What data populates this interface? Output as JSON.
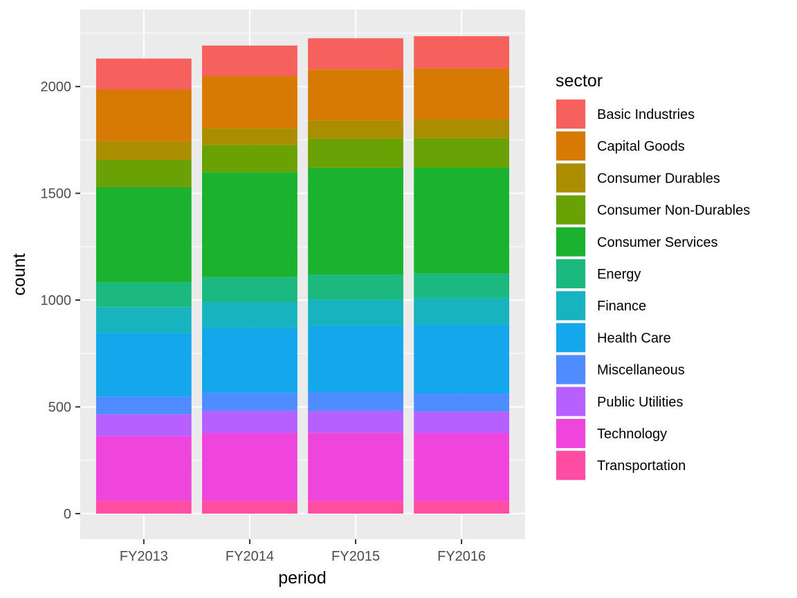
{
  "chart_data": {
    "type": "bar",
    "stacked": true,
    "title": "",
    "xlabel": "period",
    "ylabel": "count",
    "categories": [
      "FY2013",
      "FY2014",
      "FY2015",
      "FY2016"
    ],
    "ylim": [
      -120,
      2360
    ],
    "yticks": [
      0,
      500,
      1000,
      1500,
      2000
    ],
    "ytick_labels": [
      "0",
      "500",
      "1000",
      "1500",
      "2000"
    ],
    "grid": true,
    "legend": {
      "title": "sector",
      "position": "right"
    },
    "series": [
      {
        "name": "Transportation",
        "color": "#FF4DA3",
        "values": [
          60,
          60,
          60,
          60
        ]
      },
      {
        "name": "Technology",
        "color": "#F045DC",
        "values": [
          302,
          317,
          318,
          317
        ]
      },
      {
        "name": "Public Utilities",
        "color": "#B661FF",
        "values": [
          103,
          104,
          103,
          101
        ]
      },
      {
        "name": "Miscellaneous",
        "color": "#4E8CFF",
        "values": [
          83,
          85,
          87,
          85
        ]
      },
      {
        "name": "Health Care",
        "color": "#14A7EB",
        "values": [
          298,
          305,
          311,
          322
        ]
      },
      {
        "name": "Finance",
        "color": "#17B3BF",
        "values": [
          121,
          121,
          123,
          123
        ]
      },
      {
        "name": "Energy",
        "color": "#1BB97F",
        "values": [
          117,
          116,
          117,
          116
        ]
      },
      {
        "name": "Consumer Services",
        "color": "#1AB22F",
        "values": [
          444,
          490,
          500,
          496
        ]
      },
      {
        "name": "Consumer Non-Durables",
        "color": "#6AA105",
        "values": [
          128,
          128,
          137,
          139
        ]
      },
      {
        "name": "Consumer Durables",
        "color": "#AA8E00",
        "values": [
          87,
          80,
          85,
          88
        ]
      },
      {
        "name": "Capital Goods",
        "color": "#D67A04",
        "values": [
          243,
          243,
          240,
          238
        ]
      },
      {
        "name": "Basic Industries",
        "color": "#F6615E",
        "values": [
          145,
          143,
          145,
          151
        ]
      }
    ]
  }
}
